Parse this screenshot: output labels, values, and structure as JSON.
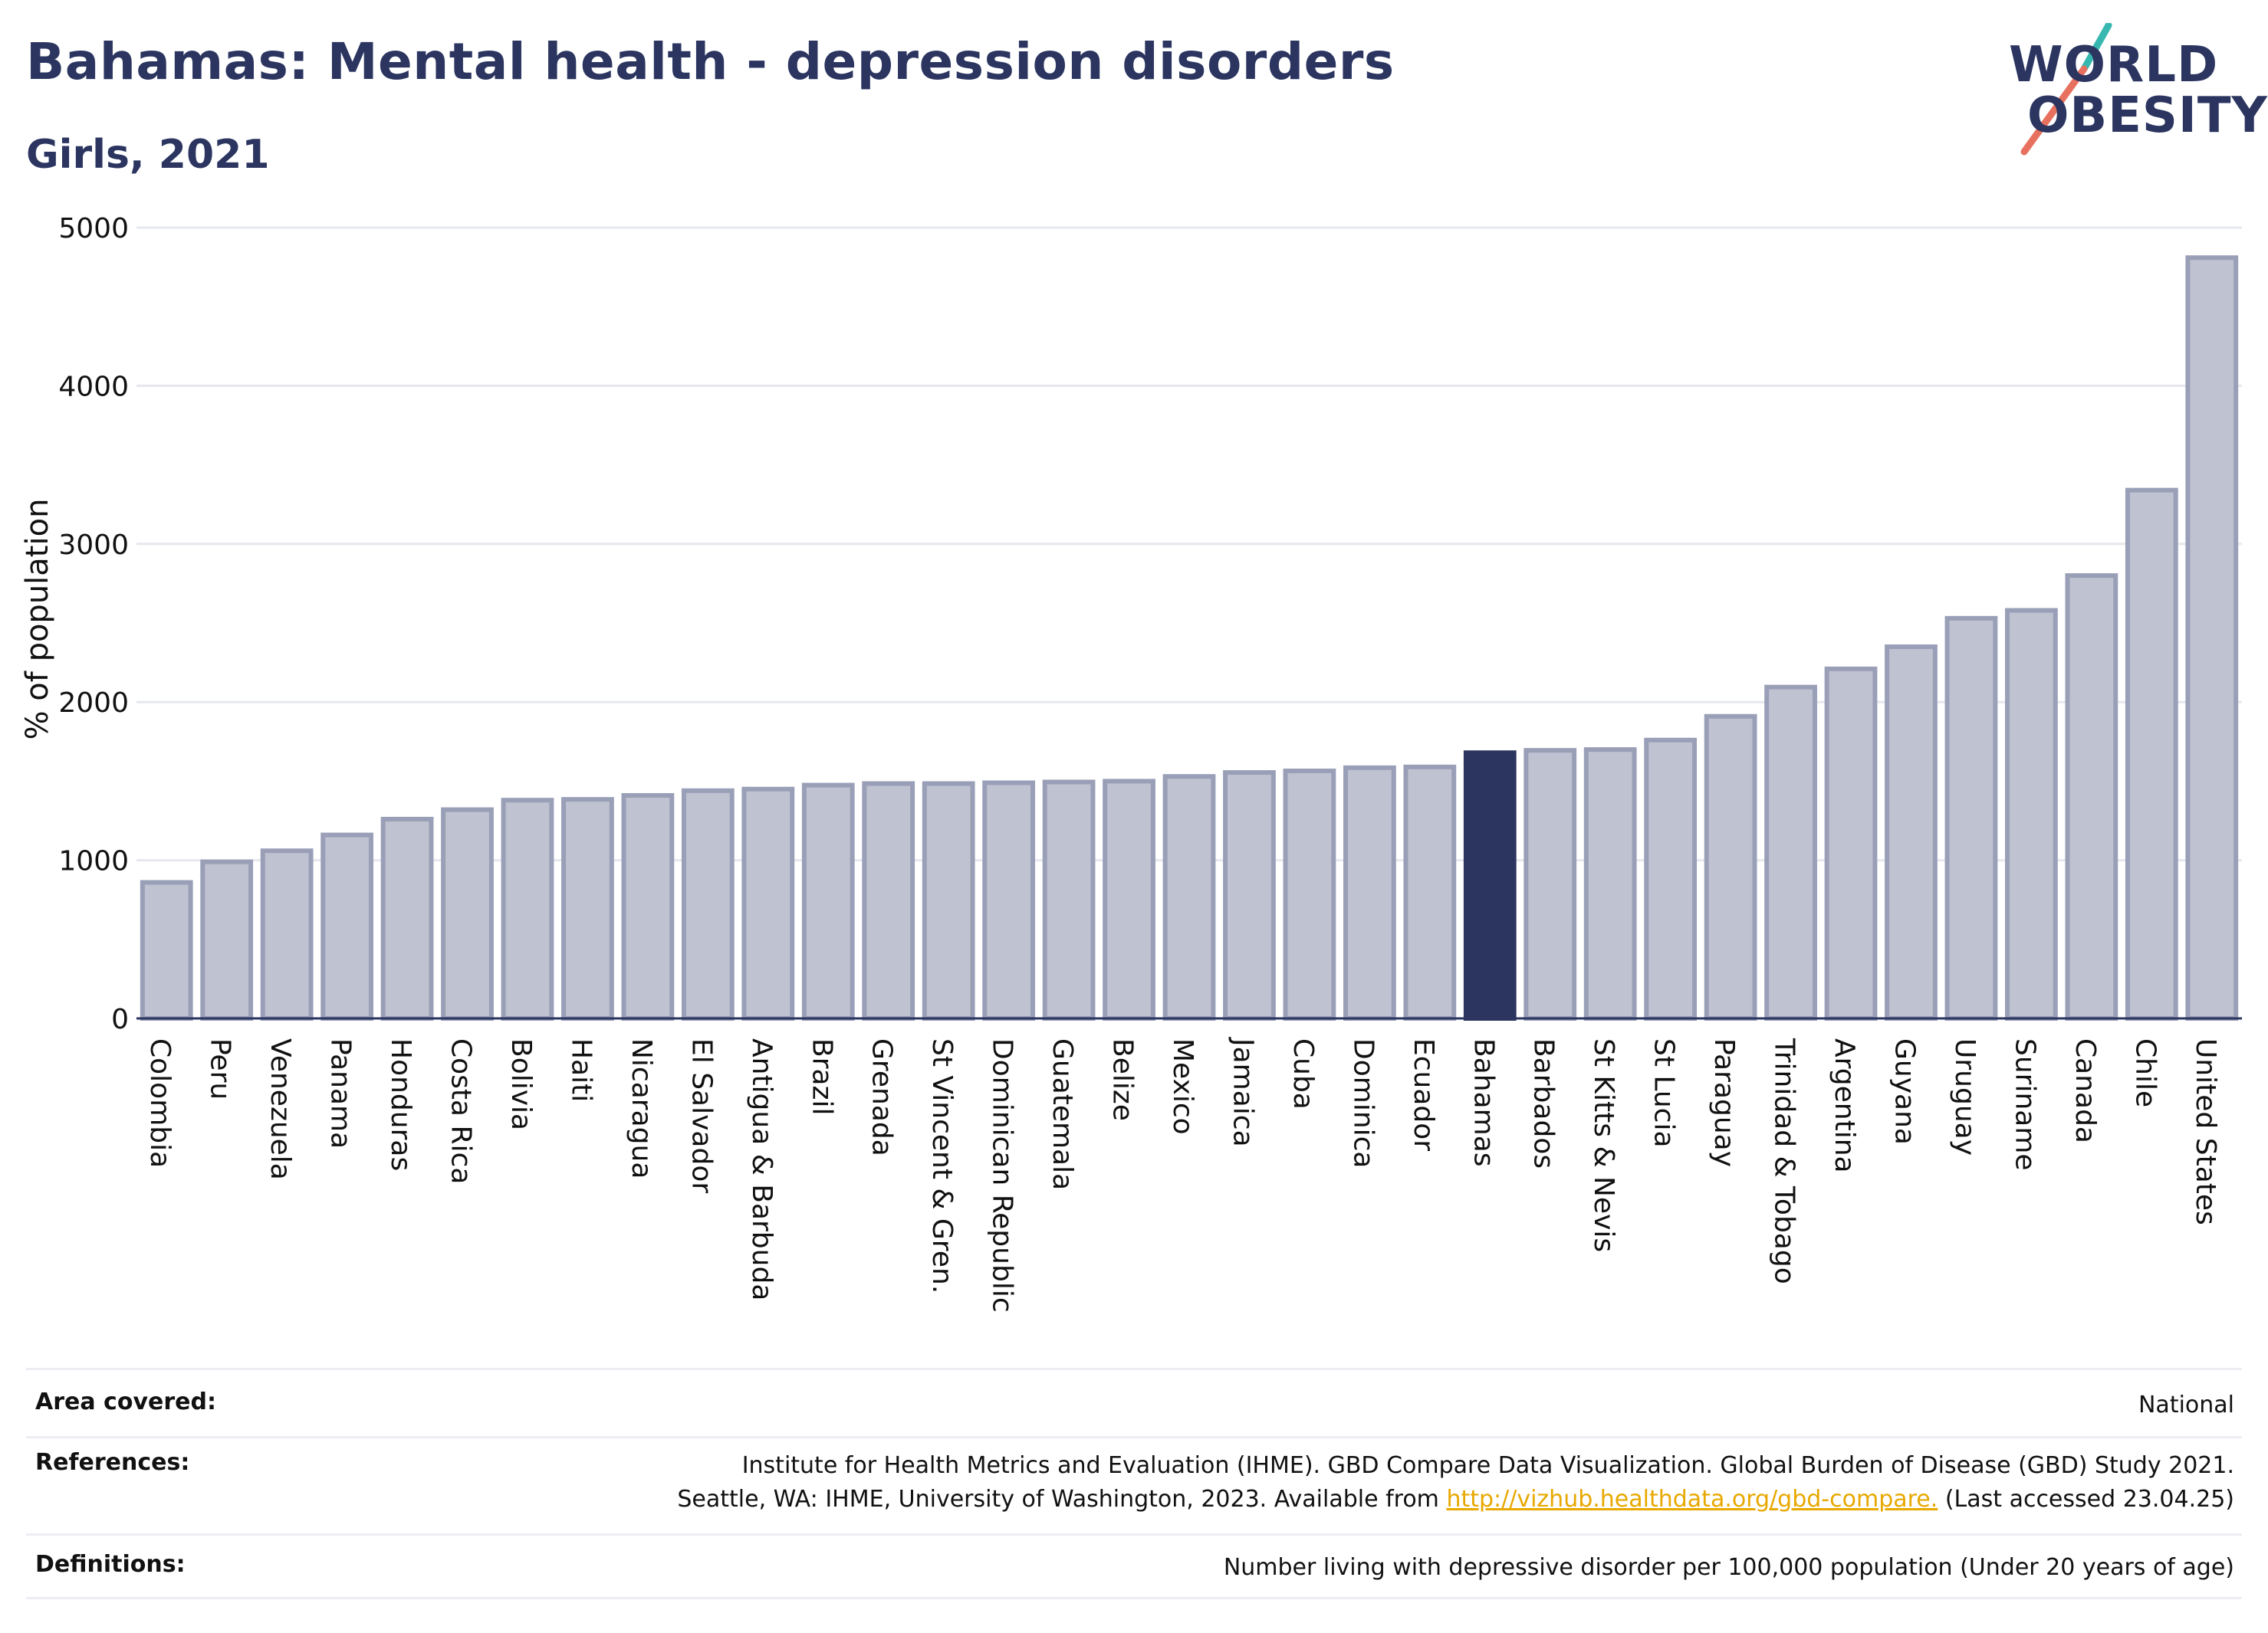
{
  "header": {
    "title": "Bahamas: Mental health - depression disorders",
    "subtitle": "Girls, 2021"
  },
  "logo": {
    "line1": "WORLD",
    "line2": "OBESITY"
  },
  "chart_data": {
    "type": "bar",
    "ylabel": "% of population",
    "xlabel": "",
    "ylim": [
      0,
      5000
    ],
    "yticks": [
      0,
      1000,
      2000,
      3000,
      4000,
      5000
    ],
    "grid": true,
    "highlight": "Bahamas",
    "colors": {
      "bar": "#bfc2d0",
      "bar_edge": "#9a9fb8",
      "highlight": "#2b3560"
    },
    "categories": [
      "Colombia",
      "Peru",
      "Venezuela",
      "Panama",
      "Honduras",
      "Costa Rica",
      "Bolivia",
      "Haiti",
      "Nicaragua",
      "El Salvador",
      "Antigua & Barbuda",
      "Brazil",
      "Grenada",
      "St Vincent & Gren.",
      "Dominican Republic",
      "Guatemala",
      "Belize",
      "Mexico",
      "Jamaica",
      "Cuba",
      "Dominica",
      "Ecuador",
      "Bahamas",
      "Barbados",
      "St Kitts & Nevis",
      "St Lucia",
      "Paraguay",
      "Trinidad & Tobago",
      "Argentina",
      "Guyana",
      "Uruguay",
      "Suriname",
      "Canada",
      "Chile",
      "United States"
    ],
    "values": [
      860,
      990,
      1060,
      1160,
      1260,
      1320,
      1380,
      1385,
      1410,
      1440,
      1450,
      1475,
      1485,
      1485,
      1490,
      1495,
      1500,
      1530,
      1555,
      1565,
      1585,
      1590,
      1680,
      1695,
      1700,
      1760,
      1910,
      2095,
      2210,
      2350,
      2530,
      2580,
      2800,
      3340,
      4810
    ]
  },
  "footer": {
    "area_label": "Area covered:",
    "area_value": "National",
    "ref_label": "References:",
    "ref_line1": "Institute for Health Metrics and Evaluation (IHME). GBD Compare Data Visualization. Global Burden of Disease (GBD) Study 2021.",
    "ref_line2_pre": "Seattle, WA: IHME, University of Washington, 2023. Available from ",
    "ref_link": "http://vizhub.healthdata.org/gbd-compare.",
    "ref_line2_post": " (Last accessed 23.04.25)",
    "def_label": "Definitions:",
    "def_value": "Number living with depressive disorder per 100,000 population (Under 20 years of age)"
  }
}
